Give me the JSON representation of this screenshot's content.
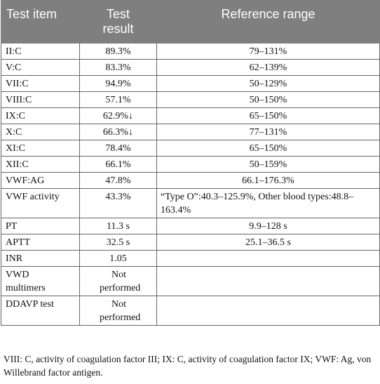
{
  "table": {
    "headers": {
      "item": "Test item",
      "result": "Test result",
      "reference": "Reference range"
    },
    "rows": [
      {
        "item": "II:C",
        "result": "89.3%",
        "reference": "79–131%"
      },
      {
        "item": "V:C",
        "result": "83.3%",
        "reference": "62–139%"
      },
      {
        "item": "VII:C",
        "result": "94.9%",
        "reference": "50–129%"
      },
      {
        "item": "VIII:C",
        "result": "57.1%",
        "reference": "50–150%"
      },
      {
        "item": "IX:C",
        "result": "62.9%↓",
        "reference": "65–150%"
      },
      {
        "item": "X:C",
        "result": "66.3%↓",
        "reference": "77–131%"
      },
      {
        "item": "XI:C",
        "result": "78.4%",
        "reference": "65–150%"
      },
      {
        "item": "XII:C",
        "result": "66.1%",
        "reference": "50–159%"
      },
      {
        "item": "VWF:AG",
        "result": "47.8%",
        "reference": "66.1–176.3%"
      },
      {
        "item": "VWF activity",
        "result": "43.3%",
        "reference": "“Type O”:40.3–125.9%, Other blood types:48.8–163.4%"
      },
      {
        "item": "PT",
        "result": "11.3 s",
        "reference": "9.9–128 s"
      },
      {
        "item": "APTT",
        "result": "32.5 s",
        "reference": "25.1–36.5 s"
      },
      {
        "item": "INR",
        "result": "1.05",
        "reference": ""
      },
      {
        "item": "VWD multimers",
        "result": "Not performed",
        "reference": ""
      },
      {
        "item": "DDAVP test",
        "result": "Not performed",
        "reference": ""
      }
    ]
  },
  "footnote": "VIII: C, activity of coagulation factor III; IX: C, activity of coagulation factor IX; VWF: Ag, von Willebrand factor antigen."
}
